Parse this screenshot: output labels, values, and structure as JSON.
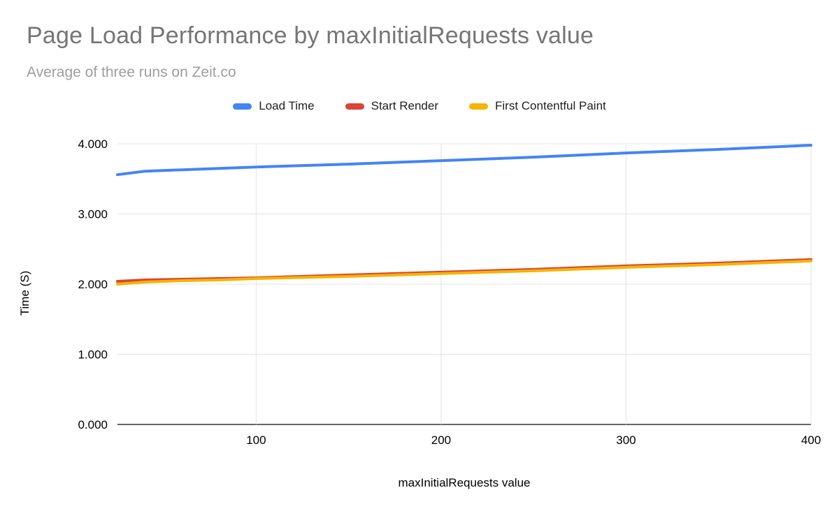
{
  "chart_data": {
    "type": "line",
    "title": "Page Load Performance by maxInitialRequests value",
    "subtitle": "Average of three runs on Zeit.co",
    "xlabel": "maxInitialRequests value",
    "ylabel": "Time (S)",
    "xlim": [
      25,
      400
    ],
    "ylim": [
      0,
      4
    ],
    "xticks": [
      100,
      200,
      300,
      400
    ],
    "xtick_labels": [
      "100",
      "200",
      "300",
      "400"
    ],
    "yticks": [
      0,
      1,
      2,
      3,
      4
    ],
    "ytick_labels": [
      "0.000",
      "1.000",
      "2.000",
      "3.000",
      "4.000"
    ],
    "grid": true,
    "legend_position": "top",
    "x": [
      25,
      40,
      60,
      80,
      100,
      150,
      200,
      250,
      300,
      350,
      400
    ],
    "series": [
      {
        "name": "Load Time",
        "color": "#4285f4",
        "values": [
          3.56,
          3.61,
          3.63,
          3.65,
          3.67,
          3.71,
          3.76,
          3.81,
          3.87,
          3.92,
          3.98
        ]
      },
      {
        "name": "Start Render",
        "color": "#db4437",
        "values": [
          2.04,
          2.06,
          2.07,
          2.08,
          2.09,
          2.13,
          2.17,
          2.21,
          2.26,
          2.3,
          2.35
        ]
      },
      {
        "name": "First Contentful Paint",
        "color": "#f4b400",
        "values": [
          2.0,
          2.03,
          2.05,
          2.06,
          2.08,
          2.11,
          2.15,
          2.19,
          2.24,
          2.28,
          2.33
        ]
      }
    ]
  },
  "colors": {
    "title_text": "#757575",
    "subtitle_text": "#9e9e9e",
    "gridline": "#e3e3e3",
    "baseline": "#333333",
    "axis_text": "#000000"
  }
}
